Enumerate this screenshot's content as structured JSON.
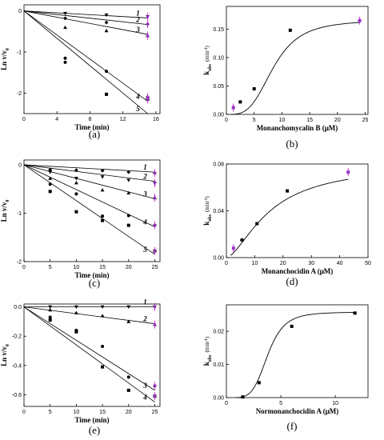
{
  "chart_data": [
    {
      "id": "a",
      "type": "scatter",
      "panel_label": "(a)",
      "xlabel": "Time (min)",
      "ylabel": "Ln v/v",
      "ylabel_sub": "0",
      "xlim": [
        0,
        16.5
      ],
      "ylim": [
        -2.5,
        0.15
      ],
      "xticks": [
        0,
        4,
        8,
        12,
        16
      ],
      "yticks": [
        0,
        -1,
        -2
      ],
      "series": [
        {
          "name": "1",
          "marker": "triangle-down",
          "x": [
            0,
            5,
            10,
            15
          ],
          "y": [
            0,
            -0.06,
            -0.1,
            -0.14
          ],
          "fit": [
            [
              0,
              0
            ],
            [
              15,
              -0.17
            ]
          ]
        },
        {
          "name": "2",
          "marker": "diamond",
          "x": [
            0,
            5,
            10,
            15
          ],
          "y": [
            0,
            -0.18,
            -0.28,
            -0.32
          ],
          "fit": [
            [
              0,
              0
            ],
            [
              15,
              -0.33
            ]
          ]
        },
        {
          "name": "3",
          "marker": "triangle-up",
          "x": [
            0,
            5,
            10,
            15
          ],
          "y": [
            0,
            -0.4,
            -0.48,
            -0.6
          ],
          "fit": [
            [
              0,
              0
            ],
            [
              15,
              -0.57
            ]
          ]
        },
        {
          "name": "4",
          "marker": "circle",
          "x": [
            0,
            5,
            5,
            10,
            15
          ],
          "y": [
            0,
            -1.15,
            -1.25,
            -1.47,
            -2.1
          ],
          "fit": [
            [
              0,
              0
            ],
            [
              15,
              -2.2
            ]
          ]
        },
        {
          "name": "5",
          "marker": "square",
          "x": [
            0,
            10,
            15
          ],
          "y": [
            0,
            -2.03,
            -2.15
          ],
          "fit": [
            [
              0,
              0
            ],
            [
              15,
              -2.5
            ]
          ]
        }
      ],
      "error_points": [
        [
          15,
          -0.14
        ],
        [
          15,
          -0.32
        ],
        [
          15,
          -0.6
        ],
        [
          15,
          -2.1
        ],
        [
          15,
          -2.15
        ]
      ]
    },
    {
      "id": "b",
      "type": "scatter",
      "panel_label": "(b)",
      "xlabel": "Monanchomycalin B (μM)",
      "ylabel": "k",
      "ylabel_sub": "obs",
      "ylabel_unit": "(min",
      "ylabel_sup": "-1",
      "xlim": [
        0,
        25.5
      ],
      "ylim": [
        0,
        0.19
      ],
      "xticks": [
        0,
        5,
        10,
        15,
        20,
        25
      ],
      "yticks": [
        0.0,
        0.05,
        0.1,
        0.15
      ],
      "ytick_labels": [
        "0.00",
        "0.05",
        "0.10",
        "0.15"
      ],
      "points": {
        "x": [
          1.25,
          2.5,
          5.0,
          11.5,
          24.0
        ],
        "y": [
          0.012,
          0.022,
          0.045,
          0.148,
          0.165
        ]
      },
      "sigmoid": {
        "top": 0.166,
        "bottom": 0.0,
        "half": 8.5,
        "n": 3.5
      }
    },
    {
      "id": "c",
      "type": "scatter",
      "panel_label": "(c)",
      "xlabel": "Time (min)",
      "ylabel": "Ln v/v",
      "ylabel_sub": "0",
      "xlim": [
        0,
        26
      ],
      "ylim": [
        -2.0,
        0.1
      ],
      "xticks": [
        0,
        5,
        10,
        15,
        20,
        25
      ],
      "yticks": [
        0,
        -1,
        -2
      ],
      "series": [
        {
          "name": "1",
          "marker": "diamond",
          "x": [
            0,
            5,
            10,
            15,
            20,
            25
          ],
          "y": [
            0,
            -0.1,
            -0.11,
            -0.12,
            -0.15,
            -0.17
          ],
          "fit": [
            [
              0,
              0
            ],
            [
              25,
              -0.15
            ]
          ]
        },
        {
          "name": "2",
          "marker": "triangle-down",
          "x": [
            0,
            5,
            10,
            15,
            20,
            25
          ],
          "y": [
            0,
            -0.15,
            -0.28,
            -0.25,
            -0.32,
            -0.38
          ],
          "fit": [
            [
              0,
              0
            ],
            [
              25,
              -0.34
            ]
          ]
        },
        {
          "name": "3",
          "marker": "triangle-up",
          "x": [
            0,
            5,
            10,
            15,
            20,
            25
          ],
          "y": [
            0,
            -0.28,
            -0.37,
            -0.52,
            -0.58,
            -0.68
          ],
          "fit": [
            [
              0,
              0
            ],
            [
              25,
              -0.7
            ]
          ]
        },
        {
          "name": "4",
          "marker": "circle",
          "x": [
            0,
            5,
            10,
            15,
            20,
            25
          ],
          "y": [
            0,
            -0.4,
            -0.6,
            -1.06,
            -1.05,
            -1.25
          ],
          "fit": [
            [
              0,
              0
            ],
            [
              25,
              -1.28
            ]
          ]
        },
        {
          "name": "5",
          "marker": "square",
          "x": [
            0,
            5,
            10,
            15,
            20,
            25
          ],
          "y": [
            0,
            -0.55,
            -0.97,
            -1.15,
            -1.25,
            -1.78
          ],
          "fit": [
            [
              0,
              0
            ],
            [
              25,
              -1.85
            ]
          ]
        }
      ],
      "error_points": [
        [
          25,
          -0.17
        ],
        [
          25,
          -0.38
        ],
        [
          25,
          -0.68
        ],
        [
          25,
          -1.25
        ],
        [
          25,
          -1.78
        ]
      ]
    },
    {
      "id": "d",
      "type": "scatter",
      "panel_label": "(d)",
      "xlabel": "Monanchocidin A (μM)",
      "ylabel": "k",
      "ylabel_sub": "obs",
      "ylabel_unit": "(min",
      "ylabel_sup": "-1",
      "xlim": [
        0,
        50
      ],
      "ylim": [
        0,
        0.08
      ],
      "xticks": [
        0,
        10,
        20,
        30,
        40,
        50
      ],
      "yticks": [
        0.0,
        0.04,
        0.08
      ],
      "ytick_labels": [
        "0.00",
        "0.04",
        "0.08"
      ],
      "points": {
        "x": [
          2.5,
          5.5,
          10.8,
          21.5,
          43.0
        ],
        "y": [
          0.008,
          0.015,
          0.029,
          0.057,
          0.073
        ]
      },
      "sigmoid": {
        "top": 0.08,
        "bottom": 0.0,
        "half": 15.5,
        "n": 1.6
      }
    },
    {
      "id": "e",
      "type": "scatter",
      "panel_label": "(e)",
      "xlabel": "Time (min)",
      "ylabel": "Ln v/v",
      "ylabel_sub": "0",
      "xlim": [
        0,
        26
      ],
      "ylim": [
        -0.68,
        0.02
      ],
      "xticks": [
        0,
        5,
        10,
        15,
        20,
        25
      ],
      "yticks": [
        0.0,
        -0.2,
        -0.4,
        -0.6
      ],
      "ytick_labels": [
        "0.0",
        "-0.2",
        "-0.4",
        "-0.6"
      ],
      "series": [
        {
          "name": "1",
          "marker": "triangle-down",
          "x": [
            0,
            5,
            10,
            15,
            20,
            25
          ],
          "y": [
            0,
            0,
            0,
            0,
            0,
            0
          ],
          "fit": [
            [
              0,
              0
            ],
            [
              25,
              0
            ]
          ]
        },
        {
          "name": "2",
          "marker": "triangle-up",
          "x": [
            0,
            5,
            10,
            15,
            20,
            25
          ],
          "y": [
            0,
            -0.02,
            -0.04,
            -0.06,
            -0.1,
            -0.12
          ],
          "fit": [
            [
              0,
              0
            ],
            [
              25,
              -0.115
            ]
          ]
        },
        {
          "name": "3",
          "marker": "circle",
          "x": [
            0,
            5,
            10,
            15,
            20,
            25
          ],
          "y": [
            0,
            -0.07,
            -0.16,
            -0.27,
            -0.48,
            -0.54
          ],
          "fit": [
            [
              0,
              0
            ],
            [
              25,
              -0.57
            ]
          ]
        },
        {
          "name": "4",
          "marker": "square",
          "x": [
            0,
            5,
            10,
            15,
            20,
            25
          ],
          "y": [
            0,
            -0.09,
            -0.17,
            -0.41,
            -0.57,
            -0.61
          ],
          "fit": [
            [
              0,
              0
            ],
            [
              25,
              -0.65
            ]
          ]
        }
      ],
      "error_points": [
        [
          25,
          0
        ],
        [
          25,
          -0.12
        ],
        [
          25,
          -0.54
        ],
        [
          25,
          -0.61
        ]
      ]
    },
    {
      "id": "f",
      "type": "scatter",
      "panel_label": "(f)",
      "xlabel": "Normonanchocidin A (μM)",
      "ylabel": "k",
      "ylabel_sub": "obs",
      "ylabel_unit": "(min",
      "ylabel_sup": "-1",
      "xlim": [
        0,
        13
      ],
      "ylim": [
        0,
        0.028
      ],
      "xticks": [
        0,
        5,
        10
      ],
      "yticks": [
        0.0,
        0.01,
        0.02
      ],
      "ytick_labels": [
        "0.00",
        "0.01",
        "0.02"
      ],
      "points": {
        "x": [
          1.5,
          3.0,
          6.0,
          11.8
        ],
        "y": [
          0.0002,
          0.0045,
          0.0215,
          0.0255
        ]
      },
      "sigmoid": {
        "top": 0.0258,
        "bottom": 0.0,
        "half": 3.8,
        "n": 5.0
      }
    }
  ],
  "colors": {
    "axis": "#000000",
    "marker": "#000000",
    "error_bar": "#cc33cc",
    "error_marker": "#9933cc"
  }
}
